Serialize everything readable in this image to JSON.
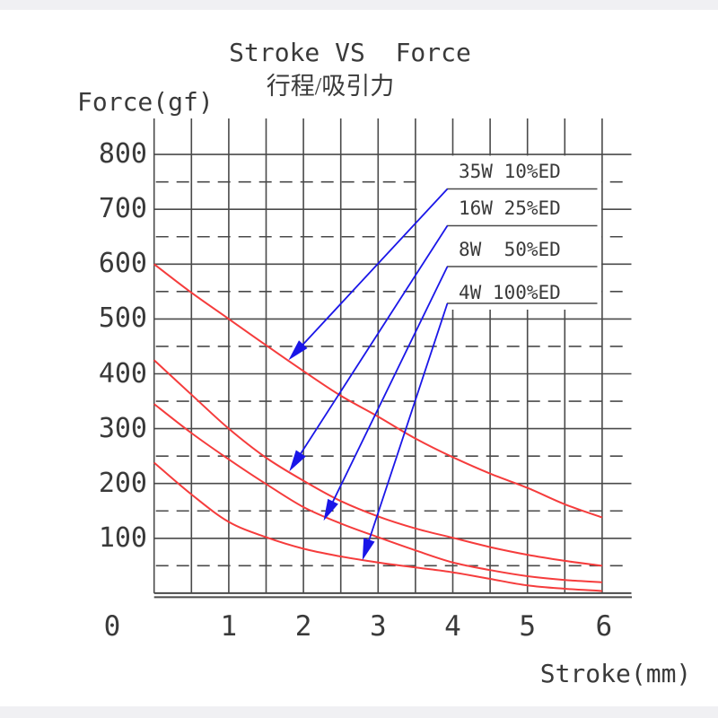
{
  "chart_data": {
    "type": "line",
    "title": "Stroke VS  Force",
    "subtitle": "行程/吸引力",
    "ylabel": "Force(gf)",
    "xlabel": "Stroke(mm)",
    "xlim": [
      0,
      6
    ],
    "ylim": [
      0,
      800
    ],
    "x_tick_labels": [
      "0",
      "1",
      "2",
      "3",
      "4",
      "5",
      "6"
    ],
    "y_tick_labels": [
      "800",
      "700",
      "600",
      "500",
      "400",
      "300",
      "200",
      "100"
    ],
    "grid": {
      "x_minor_step_mm": 0.5,
      "y_solid_lines_gf": [
        100,
        200,
        300,
        400,
        500,
        600,
        700,
        800
      ],
      "y_dashed_lines_gf": [
        50,
        150,
        250,
        350,
        450,
        550,
        650,
        750
      ],
      "grid_on": true
    },
    "x": [
      0,
      0.5,
      1,
      1.5,
      2,
      2.5,
      3,
      3.5,
      4,
      4.5,
      5,
      5.5,
      6
    ],
    "series": [
      {
        "name": "35W 10%ED",
        "values": [
          600,
          548,
          500,
          452,
          405,
          360,
          322,
          282,
          248,
          218,
          192,
          162,
          138
        ]
      },
      {
        "name": "16W 25%ED",
        "values": [
          425,
          362,
          300,
          247,
          205,
          168,
          140,
          118,
          101,
          84,
          70,
          59,
          50
        ]
      },
      {
        "name": "8W  50%ED",
        "values": [
          345,
          292,
          244,
          199,
          157,
          127,
          102,
          78,
          56,
          42,
          31,
          24,
          20
        ]
      },
      {
        "name": "4W 100%ED",
        "values": [
          238,
          180,
          130,
          102,
          81,
          67,
          56,
          47,
          38,
          26,
          14,
          8,
          4
        ]
      }
    ],
    "legend": {
      "position": "top-right-inside",
      "entries": [
        "35W 10%ED",
        "16W 25%ED",
        "8W  50%ED",
        "4W 100%ED"
      ],
      "arrow_targets": [
        {
          "x": 1.8,
          "y": 425
        },
        {
          "x": 1.81,
          "y": 222
        },
        {
          "x": 2.27,
          "y": 132
        },
        {
          "x": 2.79,
          "y": 60
        }
      ]
    },
    "colors": {
      "curve": "#f53c3c",
      "arrow": "#1a16e8",
      "grid": "#4a4a4a",
      "text": "#3a3a3a",
      "background": "#ffffff"
    }
  }
}
